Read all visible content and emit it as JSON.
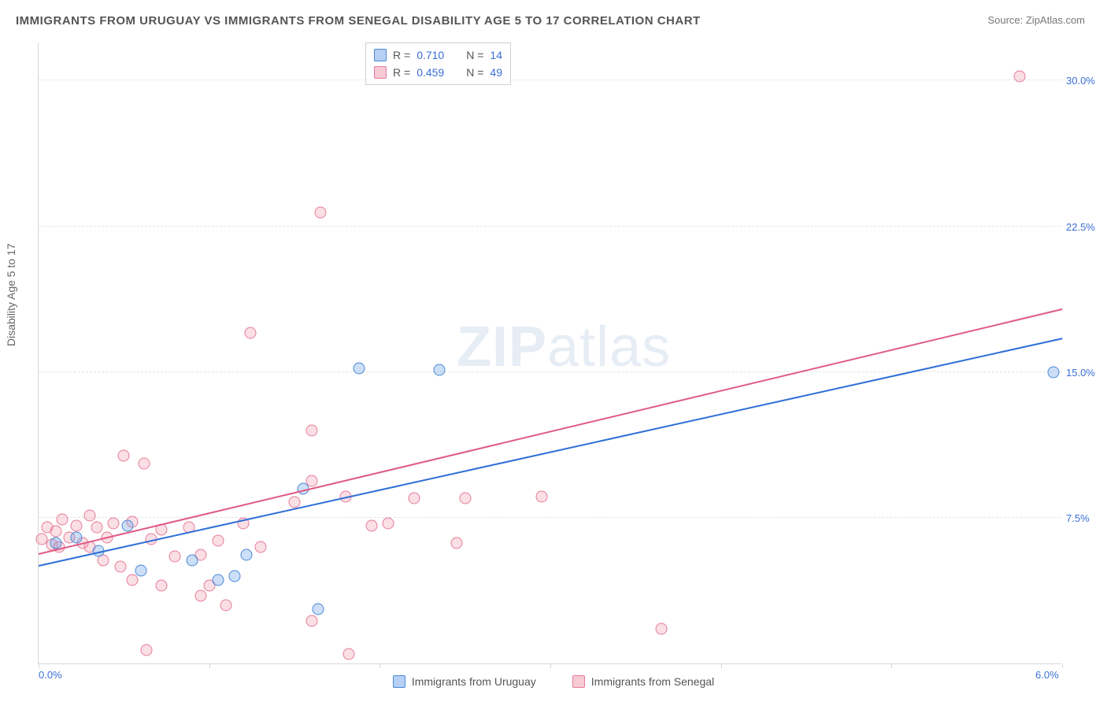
{
  "title": "IMMIGRANTS FROM URUGUAY VS IMMIGRANTS FROM SENEGAL DISABILITY AGE 5 TO 17 CORRELATION CHART",
  "source": "Source: ZipAtlas.com",
  "y_axis_label": "Disability Age 5 to 17",
  "watermark_a": "ZIP",
  "watermark_b": "atlas",
  "chart": {
    "type": "scatter",
    "background_color": "#ffffff",
    "grid_color": "#e4e4e4",
    "axis_color": "#d7d7d7",
    "tick_label_color": "#3b6fd6",
    "title_color": "#555555",
    "xlim": [
      0.0,
      6.0
    ],
    "ylim": [
      0.0,
      32.0
    ],
    "x_ticks": [
      0.0,
      1.0,
      2.0,
      3.0,
      4.0,
      5.0,
      6.0
    ],
    "x_tick_labels": {
      "0": "0.0%",
      "6": "6.0%"
    },
    "y_gridlines": [
      7.5,
      15.0,
      22.5,
      30.0
    ],
    "y_tick_labels": [
      "7.5%",
      "15.0%",
      "22.5%",
      "30.0%"
    ],
    "marker_size": 15,
    "marker_opacity": 0.35,
    "line_width": 2
  },
  "stats_legend": {
    "rows": [
      {
        "swatch": "blue",
        "r_label": "R =",
        "r_value": "0.710",
        "n_label": "N =",
        "n_value": "14"
      },
      {
        "swatch": "pink",
        "r_label": "R =",
        "r_value": "0.459",
        "n_label": "N =",
        "n_value": "49"
      }
    ]
  },
  "bottom_legend": {
    "items": [
      {
        "swatch": "blue",
        "label": "Immigrants from Uruguay"
      },
      {
        "swatch": "pink",
        "label": "Immigrants from Senegal"
      }
    ]
  },
  "series": [
    {
      "name": "Immigrants from Uruguay",
      "color_fill": "rgba(108,162,230,0.35)",
      "color_stroke": "#4a88d8",
      "trend_color": "#2e6fd8",
      "trend": {
        "x1": 0.0,
        "y1": 5.0,
        "x2": 6.0,
        "y2": 16.7
      },
      "points": [
        {
          "x": 0.1,
          "y": 6.2
        },
        {
          "x": 0.22,
          "y": 6.5
        },
        {
          "x": 0.35,
          "y": 5.8
        },
        {
          "x": 0.52,
          "y": 7.1
        },
        {
          "x": 0.6,
          "y": 4.8
        },
        {
          "x": 0.9,
          "y": 5.3
        },
        {
          "x": 1.05,
          "y": 4.3
        },
        {
          "x": 1.22,
          "y": 5.6
        },
        {
          "x": 1.15,
          "y": 4.5
        },
        {
          "x": 1.55,
          "y": 9.0
        },
        {
          "x": 1.64,
          "y": 2.8
        },
        {
          "x": 1.88,
          "y": 15.2
        },
        {
          "x": 2.35,
          "y": 15.1
        },
        {
          "x": 5.95,
          "y": 15.0
        }
      ]
    },
    {
      "name": "Immigrants from Senegal",
      "color_fill": "rgba(240,150,170,0.30)",
      "color_stroke": "#e77a9a",
      "trend_color": "#e05a85",
      "trend": {
        "x1": 0.0,
        "y1": 5.6,
        "x2": 6.0,
        "y2": 18.2
      },
      "points": [
        {
          "x": 0.02,
          "y": 6.4
        },
        {
          "x": 0.05,
          "y": 7.0
        },
        {
          "x": 0.08,
          "y": 6.1
        },
        {
          "x": 0.1,
          "y": 6.8
        },
        {
          "x": 0.14,
          "y": 7.4
        },
        {
          "x": 0.12,
          "y": 6.0
        },
        {
          "x": 0.18,
          "y": 6.5
        },
        {
          "x": 0.22,
          "y": 7.1
        },
        {
          "x": 0.26,
          "y": 6.2
        },
        {
          "x": 0.3,
          "y": 7.6
        },
        {
          "x": 0.3,
          "y": 6.0
        },
        {
          "x": 0.34,
          "y": 7.0
        },
        {
          "x": 0.4,
          "y": 6.5
        },
        {
          "x": 0.38,
          "y": 5.3
        },
        {
          "x": 0.44,
          "y": 7.2
        },
        {
          "x": 0.48,
          "y": 5.0
        },
        {
          "x": 0.5,
          "y": 10.7
        },
        {
          "x": 0.55,
          "y": 7.3
        },
        {
          "x": 0.55,
          "y": 4.3
        },
        {
          "x": 0.62,
          "y": 10.3
        },
        {
          "x": 0.66,
          "y": 6.4
        },
        {
          "x": 0.63,
          "y": 0.7
        },
        {
          "x": 0.72,
          "y": 6.9
        },
        {
          "x": 0.72,
          "y": 4.0
        },
        {
          "x": 0.8,
          "y": 5.5
        },
        {
          "x": 0.88,
          "y": 7.0
        },
        {
          "x": 0.95,
          "y": 5.6
        },
        {
          "x": 0.95,
          "y": 3.5
        },
        {
          "x": 1.05,
          "y": 6.3
        },
        {
          "x": 1.0,
          "y": 4.0
        },
        {
          "x": 1.1,
          "y": 3.0
        },
        {
          "x": 1.2,
          "y": 7.2
        },
        {
          "x": 1.24,
          "y": 17.0
        },
        {
          "x": 1.3,
          "y": 6.0
        },
        {
          "x": 1.5,
          "y": 8.3
        },
        {
          "x": 1.6,
          "y": 12.0
        },
        {
          "x": 1.6,
          "y": 9.4
        },
        {
          "x": 1.6,
          "y": 2.2
        },
        {
          "x": 1.65,
          "y": 23.2
        },
        {
          "x": 1.8,
          "y": 8.6
        },
        {
          "x": 1.82,
          "y": 0.5
        },
        {
          "x": 1.95,
          "y": 7.1
        },
        {
          "x": 2.05,
          "y": 7.2
        },
        {
          "x": 2.2,
          "y": 8.5
        },
        {
          "x": 2.5,
          "y": 8.5
        },
        {
          "x": 2.45,
          "y": 6.2
        },
        {
          "x": 2.95,
          "y": 8.6
        },
        {
          "x": 3.65,
          "y": 1.8
        },
        {
          "x": 5.75,
          "y": 30.2
        }
      ]
    }
  ]
}
